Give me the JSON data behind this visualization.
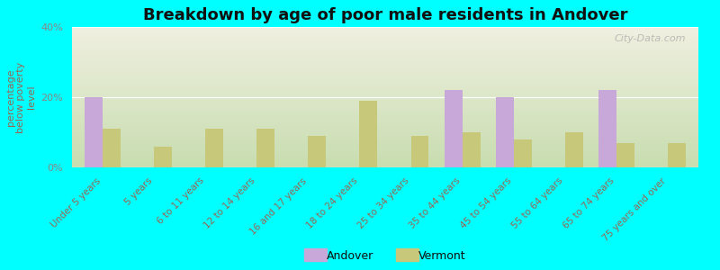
{
  "title": "Breakdown by age of poor male residents in Andover",
  "ylabel": "percentage\nbelow poverty\nlevel",
  "background_color": "#00FFFF",
  "plot_bg_top": "#f0f0e0",
  "plot_bg_bottom": "#c8ddb0",
  "categories": [
    "Under 5 years",
    "5 years",
    "6 to 11 years",
    "12 to 14 years",
    "16 and 17 years",
    "18 to 24 years",
    "25 to 34 years",
    "35 to 44 years",
    "45 to 54 years",
    "55 to 64 years",
    "65 to 74 years",
    "75 years and over"
  ],
  "andover_values": [
    20.0,
    0.0,
    0.0,
    0.0,
    0.0,
    0.0,
    0.0,
    22.0,
    20.0,
    0.0,
    22.0,
    0.0
  ],
  "vermont_values": [
    11.0,
    6.0,
    11.0,
    11.0,
    9.0,
    19.0,
    9.0,
    10.0,
    8.0,
    10.0,
    7.0,
    7.0
  ],
  "andover_color": "#c8a8d8",
  "vermont_color": "#c8c87a",
  "ylim": [
    0,
    40
  ],
  "yticks": [
    0,
    20,
    40
  ],
  "ytick_labels": [
    "0%",
    "20%",
    "40%"
  ],
  "watermark": "City-Data.com",
  "legend_labels": [
    "Andover",
    "Vermont"
  ],
  "bar_width": 0.35,
  "title_fontsize": 13,
  "ylabel_fontsize": 8,
  "tick_fontsize": 7.5,
  "ylabel_color": "#996655",
  "xtick_color": "#996655",
  "ytick_color": "#888888",
  "legend_text_color": "#111111",
  "legend_fontsize": 9,
  "watermark_color": "#aaaaaa",
  "watermark_fontsize": 8
}
